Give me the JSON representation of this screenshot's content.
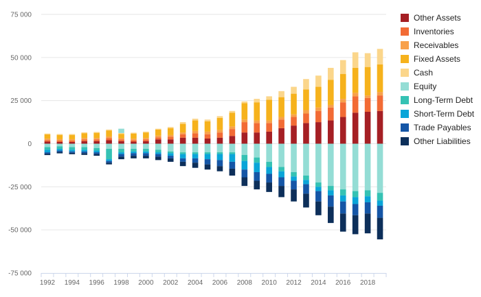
{
  "chart_data": {
    "type": "bar",
    "stacked": true,
    "ylim": [
      -75000,
      75000
    ],
    "yticks": [
      75000,
      50000,
      25000,
      0,
      -25000,
      -50000,
      -75000
    ],
    "ytick_labels": [
      "75 000",
      "50 000",
      "25 000",
      "0",
      "-25 000",
      "-50 000",
      "-75 000"
    ],
    "x": [
      1992,
      1993,
      1994,
      1995,
      1996,
      1997,
      1998,
      1999,
      2000,
      2001,
      2002,
      2003,
      2004,
      2005,
      2006,
      2007,
      2008,
      2009,
      2010,
      2011,
      2012,
      2013,
      2014,
      2015,
      2016,
      2017,
      2018,
      2019
    ],
    "xtick_labels": [
      "1992",
      "1994",
      "1996",
      "1998",
      "2000",
      "2002",
      "2004",
      "2006",
      "2008",
      "2010",
      "2012",
      "2014",
      "2016",
      "2018"
    ],
    "legend_position": "right",
    "assets": [
      {
        "name": "Other Assets",
        "color": "#a51f24",
        "values": [
          1200,
          1000,
          1000,
          1500,
          1500,
          2000,
          1500,
          1200,
          1500,
          2500,
          2500,
          3500,
          3500,
          3000,
          3500,
          4500,
          6500,
          6500,
          7000,
          9000,
          10500,
          12000,
          12500,
          13500,
          15500,
          18000,
          18500,
          19000
        ]
      },
      {
        "name": "Inventories",
        "color": "#f26b35",
        "values": [
          900,
          800,
          800,
          1000,
          1000,
          1200,
          1000,
          900,
          1000,
          1200,
          1500,
          2000,
          2500,
          2500,
          3000,
          4000,
          6000,
          5500,
          5000,
          5000,
          5000,
          5500,
          6500,
          7500,
          8500,
          9500,
          8000,
          9000
        ]
      },
      {
        "name": "Receivables",
        "color": "#f8a14b",
        "values": [
          800,
          800,
          800,
          800,
          800,
          1000,
          700,
          800,
          800,
          1000,
          1000,
          1000,
          1500,
          1500,
          1500,
          1500,
          1500,
          1500,
          1500,
          1500,
          1500,
          2000,
          2000,
          1500,
          2000,
          2000,
          1500,
          2000
        ]
      },
      {
        "name": "Fixed Assets",
        "color": "#f6b21c",
        "values": [
          2500,
          2500,
          2500,
          2800,
          3000,
          3500,
          2500,
          3000,
          3200,
          3500,
          4000,
          5000,
          6000,
          6000,
          7000,
          8000,
          9500,
          10500,
          12000,
          11500,
          12000,
          12000,
          12000,
          14500,
          14500,
          14500,
          16500,
          16000
        ]
      },
      {
        "name": "Cash",
        "color": "#fbd68b",
        "values": [
          500,
          500,
          500,
          500,
          500,
          500,
          500,
          500,
          500,
          500,
          700,
          1000,
          1000,
          1000,
          1000,
          1000,
          1000,
          2000,
          2000,
          3500,
          4000,
          6000,
          6500,
          7000,
          8000,
          9000,
          8000,
          9000
        ]
      },
      {
        "name": "Equity",
        "color": "#94ddd5",
        "values": [
          0,
          0,
          0,
          0,
          0,
          0,
          2500,
          0,
          0,
          0,
          0,
          0,
          0,
          0,
          0,
          0,
          0,
          0,
          0,
          0,
          0,
          0,
          0,
          0,
          0,
          0,
          0,
          0
        ]
      }
    ],
    "liabilities": [
      {
        "name": "Equity",
        "color": "#94ddd5",
        "values": [
          -2000,
          -1500,
          -2000,
          -2000,
          -2500,
          -3000,
          -3000,
          -3000,
          -3000,
          -3500,
          -4500,
          -5000,
          -5000,
          -5000,
          -5000,
          -5000,
          -6500,
          -8000,
          -10500,
          -13500,
          -16500,
          -18500,
          -22500,
          -24500,
          -26500,
          -27500,
          -27000,
          -28500
        ]
      },
      {
        "name": "Long-Term Debt",
        "color": "#35c2b4",
        "values": [
          -1500,
          -1500,
          -1500,
          -1500,
          -1500,
          -6000,
          -2000,
          -1500,
          -1500,
          -1500,
          -1000,
          -1000,
          -1000,
          -1000,
          -1000,
          -1000,
          -3500,
          -3000,
          -3000,
          -2500,
          -2500,
          -2500,
          -2500,
          -2500,
          -3500,
          -3500,
          -3500,
          -4500
        ]
      },
      {
        "name": "Short-Term Debt",
        "color": "#0aa5d8",
        "values": [
          -1500,
          -1000,
          -1000,
          -1000,
          -1000,
          -1000,
          -1000,
          -1000,
          -1000,
          -1000,
          -1500,
          -2500,
          -2500,
          -3000,
          -3500,
          -4500,
          -5000,
          -5500,
          -4000,
          -3500,
          -2500,
          -2500,
          -2500,
          -3000,
          -3500,
          -4000,
          -3500,
          -3000
        ]
      },
      {
        "name": "Trade Payables",
        "color": "#1556a6",
        "values": [
          -800,
          -800,
          -800,
          -1000,
          -1000,
          -1000,
          -1500,
          -1500,
          -1500,
          -1500,
          -1500,
          -2000,
          -2500,
          -3000,
          -3500,
          -4000,
          -4500,
          -5000,
          -5000,
          -5000,
          -5000,
          -5500,
          -6000,
          -6500,
          -7000,
          -6500,
          -6500,
          -7000
        ]
      },
      {
        "name": "Other Liabilities",
        "color": "#0d2f5a",
        "values": [
          -800,
          -800,
          -800,
          -1000,
          -1000,
          -1000,
          -1500,
          -1500,
          -1500,
          -2000,
          -2000,
          -2500,
          -3000,
          -3000,
          -3000,
          -4000,
          -5000,
          -5000,
          -5500,
          -6500,
          -7000,
          -8000,
          -8000,
          -9500,
          -10500,
          -11000,
          -11500,
          -12500
        ]
      }
    ],
    "legend": [
      {
        "name": "Other Assets",
        "color": "#a51f24"
      },
      {
        "name": "Inventories",
        "color": "#f26b35"
      },
      {
        "name": "Receivables",
        "color": "#f8a14b"
      },
      {
        "name": "Fixed Assets",
        "color": "#f6b21c"
      },
      {
        "name": "Cash",
        "color": "#fbd68b"
      },
      {
        "name": "Equity",
        "color": "#94ddd5"
      },
      {
        "name": "Long-Term Debt",
        "color": "#35c2b4"
      },
      {
        "name": "Short-Term Debt",
        "color": "#0aa5d8"
      },
      {
        "name": "Trade Payables",
        "color": "#1556a6"
      },
      {
        "name": "Other Liabilities",
        "color": "#0d2f5a"
      }
    ]
  }
}
